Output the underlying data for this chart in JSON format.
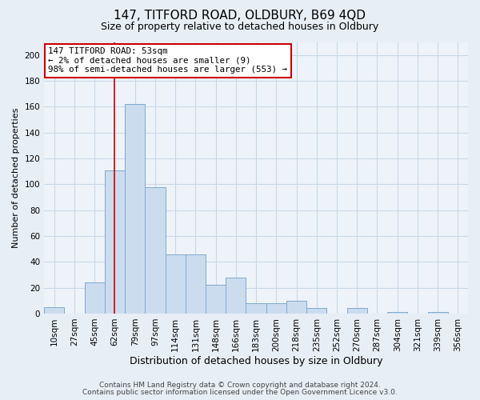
{
  "title": "147, TITFORD ROAD, OLDBURY, B69 4QD",
  "subtitle": "Size of property relative to detached houses in Oldbury",
  "xlabel": "Distribution of detached houses by size in Oldbury",
  "ylabel": "Number of detached properties",
  "footer_line1": "Contains HM Land Registry data © Crown copyright and database right 2024.",
  "footer_line2": "Contains public sector information licensed under the Open Government Licence v3.0.",
  "bar_labels": [
    "10sqm",
    "27sqm",
    "45sqm",
    "62sqm",
    "79sqm",
    "97sqm",
    "114sqm",
    "131sqm",
    "148sqm",
    "166sqm",
    "183sqm",
    "200sqm",
    "218sqm",
    "235sqm",
    "252sqm",
    "270sqm",
    "287sqm",
    "304sqm",
    "321sqm",
    "339sqm",
    "356sqm"
  ],
  "bar_values": [
    5,
    0,
    24,
    111,
    162,
    98,
    46,
    46,
    22,
    28,
    8,
    8,
    10,
    4,
    0,
    4,
    0,
    1,
    0,
    1,
    0
  ],
  "bar_color": "#ccdcef",
  "bar_edge_color": "#7aaad0",
  "ylim": [
    0,
    210
  ],
  "yticks": [
    0,
    20,
    40,
    60,
    80,
    100,
    120,
    140,
    160,
    180,
    200
  ],
  "vline_x": 3.0,
  "vline_color": "#cc0000",
  "annotation_line1": "147 TITFORD ROAD: 53sqm",
  "annotation_line2": "← 2% of detached houses are smaller (9)",
  "annotation_line3": "98% of semi-detached houses are larger (553) →",
  "annotation_box_color": "#ffffff",
  "annotation_box_edge": "#cc0000",
  "grid_color": "#c8d8e8",
  "bg_color": "#e8eef6",
  "plot_bg_color": "#eef3f9",
  "title_fontsize": 11,
  "subtitle_fontsize": 9,
  "xlabel_fontsize": 9,
  "ylabel_fontsize": 8,
  "tick_fontsize": 7.5,
  "footer_fontsize": 6.5
}
